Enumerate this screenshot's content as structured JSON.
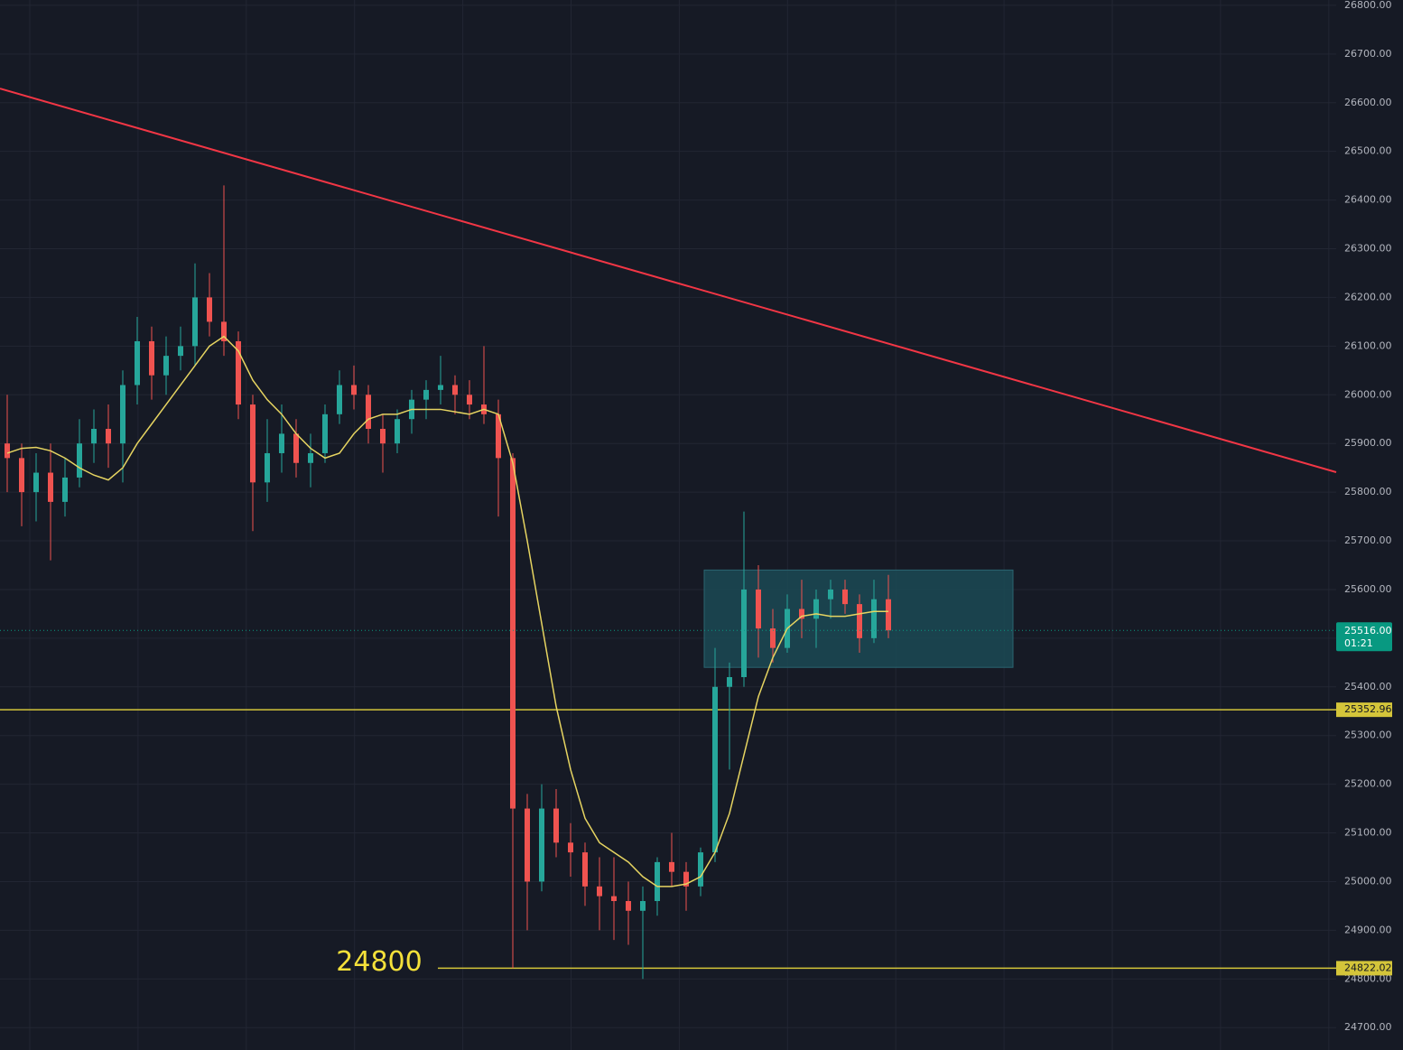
{
  "chart_data": {
    "type": "candlestick",
    "ylim": [
      24654,
      26811
    ],
    "yticks": [
      {
        "value": 24700,
        "label": "24700.00"
      },
      {
        "value": 24800,
        "label": "24800.00"
      },
      {
        "value": 24900,
        "label": "24900.00"
      },
      {
        "value": 25000,
        "label": "25000.00"
      },
      {
        "value": 25100,
        "label": "25100.00"
      },
      {
        "value": 25200,
        "label": "25200.00"
      },
      {
        "value": 25300,
        "label": "25300.00"
      },
      {
        "value": 25400,
        "label": "25400.00"
      },
      {
        "value": 25500,
        "label": "25500.00"
      },
      {
        "value": 25600,
        "label": "25600.00"
      },
      {
        "value": 25700,
        "label": "25700.00"
      },
      {
        "value": 25800,
        "label": "25800.00"
      },
      {
        "value": 25900,
        "label": "25900.00"
      },
      {
        "value": 26000,
        "label": "26000.00"
      },
      {
        "value": 26100,
        "label": "26100.00"
      },
      {
        "value": 26200,
        "label": "26200.00"
      },
      {
        "value": 26300,
        "label": "26300.00"
      },
      {
        "value": 26400,
        "label": "26400.00"
      },
      {
        "value": 26500,
        "label": "26500.00"
      },
      {
        "value": 26600,
        "label": "26600.00"
      },
      {
        "value": 26700,
        "label": "26700.00"
      },
      {
        "value": 26800,
        "label": "26800.00"
      }
    ],
    "grid": true,
    "up_color": "#26a69a",
    "down_color": "#ef5350",
    "open": [
      25900,
      25870,
      25800,
      25840,
      25780,
      25830,
      25900,
      25930,
      25900,
      26020,
      26110,
      26040,
      26080,
      26100,
      26200,
      26150,
      26110,
      25980,
      25820,
      25880,
      25920,
      25860,
      25880,
      25960,
      26020,
      26000,
      25930,
      25900,
      25950,
      25990,
      26010,
      26020,
      26000,
      25980,
      25960,
      25870,
      25150,
      25000,
      25150,
      25080,
      25060,
      24990,
      24970,
      24960,
      24940,
      24960,
      25040,
      25020,
      24990,
      25060,
      25400,
      25420,
      25600,
      25520,
      25480,
      25560,
      25540,
      25580,
      25600,
      25570,
      25500,
      25580
    ],
    "high": [
      26000,
      25900,
      25880,
      25900,
      25870,
      25950,
      25970,
      25980,
      26050,
      26160,
      26140,
      26120,
      26140,
      26270,
      26250,
      26430,
      26130,
      26000,
      25950,
      25980,
      25950,
      25920,
      25980,
      26050,
      26060,
      26020,
      25960,
      25970,
      26010,
      26030,
      26080,
      26040,
      26030,
      26100,
      25990,
      25880,
      25180,
      25200,
      25190,
      25120,
      25080,
      25050,
      25050,
      25000,
      24990,
      25050,
      25100,
      25040,
      25070,
      25480,
      25450,
      25760,
      25650,
      25560,
      25590,
      25620,
      25600,
      25620,
      25620,
      25590,
      25620,
      25630
    ],
    "low": [
      25800,
      25730,
      25740,
      25660,
      25750,
      25810,
      25860,
      25850,
      25820,
      25980,
      25990,
      26000,
      26050,
      26060,
      26120,
      26080,
      25950,
      25720,
      25780,
      25840,
      25830,
      25810,
      25860,
      25940,
      25970,
      25900,
      25840,
      25880,
      25920,
      25950,
      25980,
      25960,
      25950,
      25940,
      25750,
      24822,
      24900,
      24980,
      25050,
      25010,
      24950,
      24900,
      24880,
      24870,
      24800,
      24930,
      24990,
      24940,
      24970,
      25040,
      25230,
      25400,
      25460,
      25450,
      25470,
      25500,
      25480,
      25540,
      25550,
      25470,
      25490,
      25500
    ],
    "close": [
      25870,
      25800,
      25840,
      25780,
      25830,
      25900,
      25930,
      25900,
      26020,
      26110,
      26040,
      26080,
      26100,
      26200,
      26150,
      26110,
      25980,
      25820,
      25880,
      25920,
      25860,
      25880,
      25960,
      26020,
      26000,
      25930,
      25900,
      25950,
      25990,
      26010,
      26020,
      26000,
      25980,
      25960,
      25870,
      25150,
      25000,
      25150,
      25080,
      25060,
      24990,
      24970,
      24960,
      24940,
      24960,
      25040,
      25020,
      24990,
      25060,
      25400,
      25420,
      25600,
      25520,
      25480,
      25560,
      25540,
      25580,
      25600,
      25570,
      25500,
      25580,
      25516
    ],
    "ma": {
      "color": "#e6d461",
      "values": [
        25880,
        25890,
        25892,
        25885,
        25870,
        25850,
        25835,
        25825,
        25850,
        25900,
        25940,
        25980,
        26020,
        26060,
        26100,
        26120,
        26090,
        26030,
        25990,
        25960,
        25920,
        25890,
        25870,
        25880,
        25920,
        25950,
        25960,
        25960,
        25970,
        25970,
        25970,
        25965,
        25960,
        25970,
        25960,
        25860,
        25700,
        25530,
        25360,
        25230,
        25130,
        25080,
        25060,
        25040,
        25010,
        24990,
        24990,
        24995,
        25010,
        25060,
        25140,
        25260,
        25380,
        25460,
        25520,
        25545,
        25550,
        25545,
        25545,
        25550,
        25555,
        25555
      ]
    },
    "trendline": {
      "color": "#f23645",
      "start": 26629,
      "end": 25841
    },
    "range_box": {
      "top": 25640,
      "bottom": 25440,
      "color": "#1b4a55"
    },
    "price_lines": [
      {
        "value": 25352.96,
        "color": "#d4c53a"
      },
      {
        "value": 24822.02,
        "color": "#d4c53a"
      }
    ],
    "current_price": {
      "value": 25516,
      "label": "25516.00",
      "timer": "01:21",
      "color": "#089981"
    },
    "annotation": "24800"
  }
}
